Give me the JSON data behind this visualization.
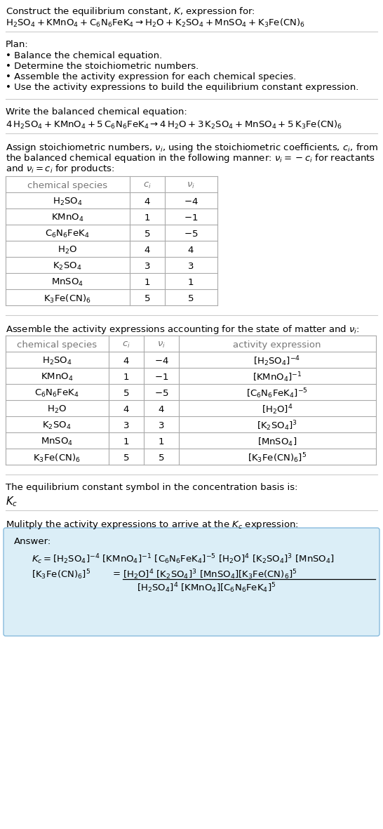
{
  "bg_color": "#ffffff",
  "answer_box_color": "#dbeef7",
  "table_border_color": "#aaaaaa",
  "gray_text_color": "#777777",
  "font_size": 9.5,
  "title_line1": "Construct the equilibrium constant, $K$, expression for:",
  "plan_header": "Plan:",
  "plan_bullets": [
    "• Balance the chemical equation.",
    "• Determine the stoichiometric numbers.",
    "• Assemble the activity expression for each chemical species.",
    "• Use the activity expressions to build the equilibrium constant expression."
  ],
  "balanced_header": "Write the balanced chemical equation:",
  "stoich_header_lines": [
    "Assign stoichiometric numbers, $\\nu_i$, using the stoichiometric coefficients, $c_i$, from",
    "the balanced chemical equation in the following manner: $\\nu_i = -c_i$ for reactants",
    "and $\\nu_i = c_i$ for products:"
  ],
  "table1_headers": [
    "chemical species",
    "$c_i$",
    "$\\nu_i$"
  ],
  "table1_rows": [
    [
      "$\\mathrm{H_2SO_4}$",
      "4",
      "$-4$"
    ],
    [
      "$\\mathrm{KMnO_4}$",
      "1",
      "$-1$"
    ],
    [
      "$\\mathrm{C_6N_6FeK_4}$",
      "5",
      "$-5$"
    ],
    [
      "$\\mathrm{H_2O}$",
      "4",
      "4"
    ],
    [
      "$\\mathrm{K_2SO_4}$",
      "3",
      "3"
    ],
    [
      "$\\mathrm{MnSO_4}$",
      "1",
      "1"
    ],
    [
      "$\\mathrm{K_3Fe(CN)_6}$",
      "5",
      "5"
    ]
  ],
  "activity_header": "Assemble the activity expressions accounting for the state of matter and $\\nu_i$:",
  "table2_headers": [
    "chemical species",
    "$c_i$",
    "$\\nu_i$",
    "activity expression"
  ],
  "table2_rows": [
    [
      "$\\mathrm{H_2SO_4}$",
      "4",
      "$-4$",
      "$[\\mathrm{H_2SO_4}]^{-4}$"
    ],
    [
      "$\\mathrm{KMnO_4}$",
      "1",
      "$-1$",
      "$[\\mathrm{KMnO_4}]^{-1}$"
    ],
    [
      "$\\mathrm{C_6N_6FeK_4}$",
      "5",
      "$-5$",
      "$[\\mathrm{C_6N_6FeK_4}]^{-5}$"
    ],
    [
      "$\\mathrm{H_2O}$",
      "4",
      "4",
      "$[\\mathrm{H_2O}]^{4}$"
    ],
    [
      "$\\mathrm{K_2SO_4}$",
      "3",
      "3",
      "$[\\mathrm{K_2SO_4}]^{3}$"
    ],
    [
      "$\\mathrm{MnSO_4}$",
      "1",
      "1",
      "$[\\mathrm{MnSO_4}]$"
    ],
    [
      "$\\mathrm{K_3Fe(CN)_6}$",
      "5",
      "5",
      "$[\\mathrm{K_3Fe(CN)_6}]^{5}$"
    ]
  ],
  "kc_header": "The equilibrium constant symbol in the concentration basis is:",
  "multiply_header": "Mulitply the activity expressions to arrive at the $K_c$ expression:"
}
